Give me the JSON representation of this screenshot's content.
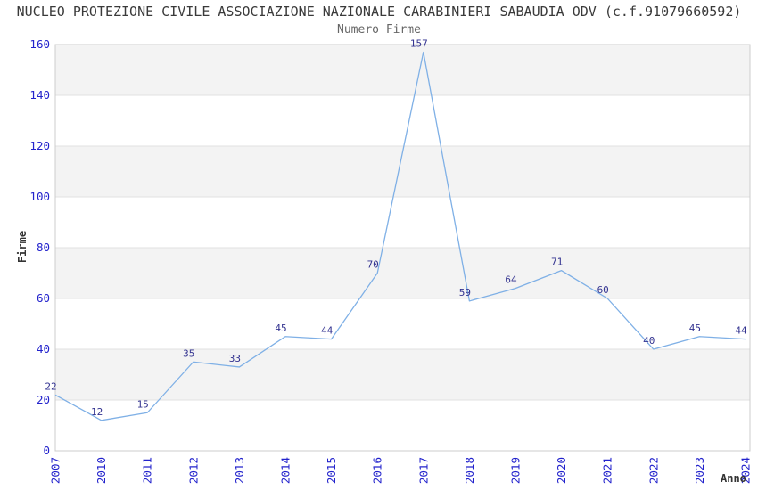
{
  "header": {
    "title": "NUCLEO PROTEZIONE CIVILE ASSOCIAZIONE NAZIONALE CARABINIERI SABAUDIA ODV (c.f.91079660592)",
    "subtitle": "Numero Firme"
  },
  "chart_data": {
    "type": "line",
    "title": "Numero Firme",
    "categories": [
      "2007",
      "2010",
      "2011",
      "2012",
      "2013",
      "2014",
      "2015",
      "2016",
      "2017",
      "2018",
      "2019",
      "2020",
      "2021",
      "2022",
      "2023",
      "2024"
    ],
    "values": [
      22,
      12,
      15,
      35,
      33,
      45,
      44,
      70,
      157,
      59,
      64,
      71,
      60,
      40,
      45,
      44
    ],
    "xlabel": "Anno",
    "ylabel": "Firme",
    "ylim": [
      0,
      160
    ],
    "ytick_step": 20,
    "grid": "horizontal-bands-alternating",
    "legend": "none",
    "data_labels": "shown above each point",
    "colors": {
      "line": "#7fb0e6",
      "tick_label": "#2323cc",
      "data_label": "#333390",
      "band_fill": "#f3f3f3",
      "gridline": "#e2e2e2",
      "frame": "#cccccc",
      "title": "#3a3a3a",
      "subtitle": "#666666",
      "axis_title": "#333333"
    }
  }
}
